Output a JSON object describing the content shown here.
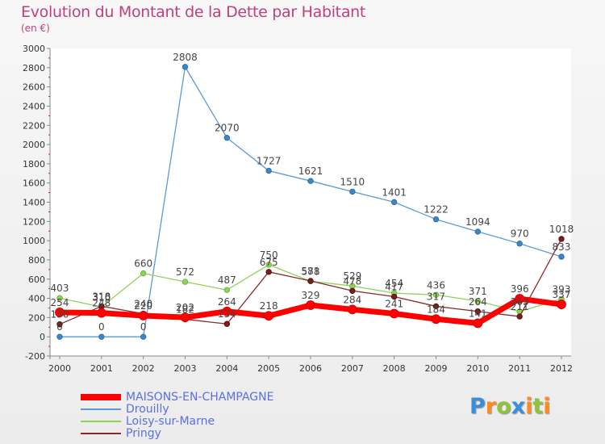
{
  "chart_data": {
    "type": "line",
    "title": "Evolution du Montant de la Dette par Habitant",
    "subtitle": "(en €)",
    "xlabel": "",
    "ylabel": "",
    "ylim": [
      -200,
      3000
    ],
    "yticks": [
      -200,
      0,
      200,
      400,
      600,
      800,
      1000,
      1200,
      1400,
      1600,
      1800,
      2000,
      2200,
      2400,
      2600,
      2800,
      3000
    ],
    "categories": [
      "2000",
      "2001",
      "2002",
      "2003",
      "2004",
      "2005",
      "2006",
      "2007",
      "2008",
      "2009",
      "2010",
      "2011",
      "2012"
    ],
    "grid": false,
    "legend_position": "bottom-left",
    "series": [
      {
        "name": "Drouilly",
        "color": "#5b9bd5",
        "values": [
          0,
          0,
          0,
          2808,
          2070,
          1727,
          1621,
          1510,
          1401,
          1222,
          1094,
          970,
          833
        ],
        "labels": [
          "0",
          "0",
          "0",
          "2808",
          "2070",
          "1727",
          "1621",
          "1510",
          "1401",
          "1222",
          "1094",
          "970",
          "833"
        ]
      },
      {
        "name": "Loisy-sur-Marne",
        "color": "#8fd25a",
        "values": [
          403,
          310,
          660,
          572,
          487,
          750,
          578,
          529,
          454,
          436,
          371,
          263,
          393
        ],
        "labels": [
          "403",
          "310",
          "660",
          "572",
          "487",
          "750",
          "578",
          "529",
          "454",
          "436",
          "371",
          "263",
          "393"
        ]
      },
      {
        "name": "Pringy",
        "color": "#8b2a2a",
        "values": [
          130,
          318,
          240,
          182,
          134,
          675,
          581,
          478,
          417,
          317,
          264,
          211,
          1018
        ],
        "labels": [
          "130",
          "318",
          "240",
          "182",
          "134",
          "675",
          "581",
          "478",
          "417",
          "317",
          "264",
          "211",
          "1018"
        ]
      },
      {
        "name": "MAISONS-EN-CHAMPAGNE",
        "color": "#ff0000",
        "values": [
          254,
          248,
          220,
          202,
          264,
          218,
          329,
          284,
          241,
          184,
          141,
          396,
          337
        ],
        "labels": [
          "254",
          "248",
          "220",
          "202",
          "264",
          "218",
          "329",
          "284",
          "241",
          "184",
          "141",
          "396",
          "337"
        ]
      }
    ],
    "legend_order": [
      "MAISONS-EN-CHAMPAGNE",
      "Drouilly",
      "Loisy-sur-Marne",
      "Pringy"
    ]
  },
  "logo": {
    "letters": [
      "P",
      "r",
      "o",
      "x",
      "i",
      "t",
      "i"
    ],
    "colors": [
      "#3b8fd8",
      "#ff8c1a",
      "#8fc43a",
      "#3b8fd8",
      "#ff8c1a",
      "#8fc43a",
      "#ff8c1a"
    ]
  }
}
